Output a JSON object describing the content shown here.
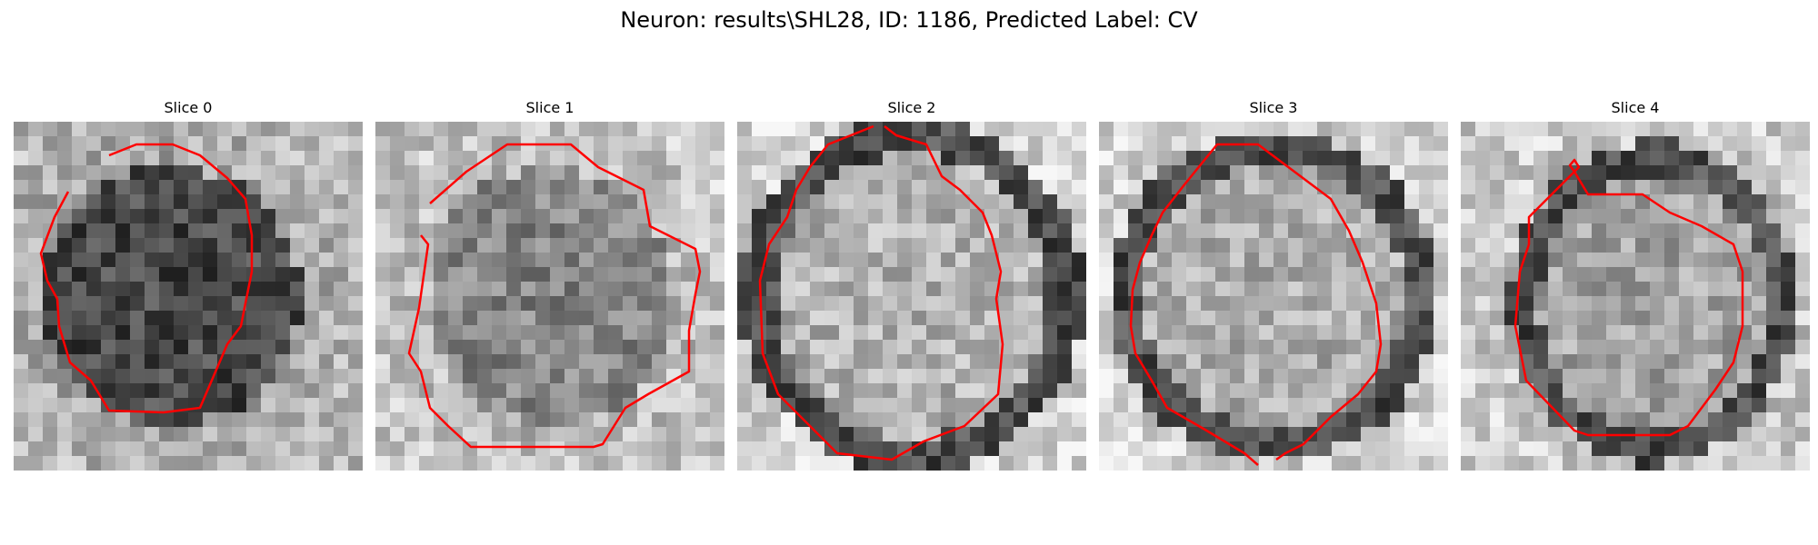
{
  "figure": {
    "suptitle": "Neuron: results\\SHL28, ID: 1186, Predicted Label: CV",
    "contour_color": "#ff0000",
    "colormap": "gray",
    "slices": [
      {
        "title": "Slice 0",
        "blob": [
          0.45,
          0.5,
          0.42,
          0.42
        ],
        "bg": [
          0.72,
          0.58
        ],
        "dark": 0.28,
        "ring": false,
        "seed": 11
      },
      {
        "title": "Slice 1",
        "blob": [
          0.5,
          0.5,
          0.4,
          0.42
        ],
        "bg": [
          0.78,
          0.66
        ],
        "dark": 0.52,
        "ring": false,
        "seed": 23
      },
      {
        "title": "Slice 2",
        "blob": [
          0.5,
          0.5,
          0.45,
          0.46
        ],
        "bg": [
          0.85,
          0.72
        ],
        "dark": 0.7,
        "ring": true,
        "seed": 37
      },
      {
        "title": "Slice 3",
        "blob": [
          0.5,
          0.5,
          0.43,
          0.43
        ],
        "bg": [
          0.85,
          0.7
        ],
        "dark": 0.68,
        "ring": true,
        "seed": 51
      },
      {
        "title": "Slice 4",
        "blob": [
          0.55,
          0.52,
          0.37,
          0.42
        ],
        "bg": [
          0.8,
          0.66
        ],
        "dark": 0.64,
        "ring": true,
        "seed": 67
      }
    ]
  }
}
